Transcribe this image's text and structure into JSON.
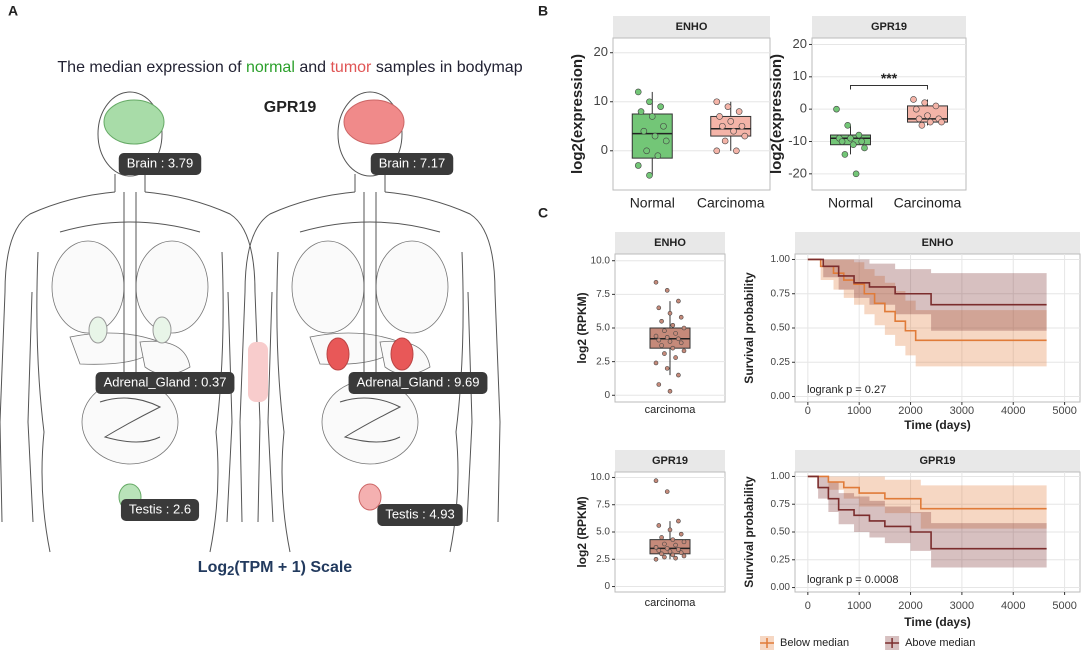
{
  "panels": [
    "A",
    "B",
    "C"
  ],
  "bodymap": {
    "title_parts": [
      "The median expression of",
      "normal",
      "and",
      "tumor",
      "samples in bodymap"
    ],
    "gene": "GPR19",
    "normal_labels": [
      "Brain : 3.79",
      "Adrenal_Gland : 0.37",
      "Testis : 2.6"
    ],
    "tumor_labels": [
      "Brain : 7.17",
      "Adrenal_Gland : 9.69",
      "Testis : 4.93"
    ],
    "scale": {
      "main": "Log",
      "sub": "2",
      "rest": "(TPM + 1) Scale"
    }
  },
  "chart_data": [
    {
      "type": "box",
      "title": "ENHO",
      "ylabel": "log2(expression)",
      "categories": [
        "Normal",
        "Carcinoma"
      ],
      "ylim": [
        -8,
        23
      ],
      "yticks": [
        0,
        10,
        20
      ],
      "grid": true,
      "boxes": [
        {
          "color": "#73c677",
          "q1": -1.5,
          "median": 3.5,
          "q3": 7.5,
          "low": -5,
          "high": 12,
          "points": [
            12,
            10,
            9,
            8,
            7,
            5,
            4,
            3,
            2,
            0,
            -1,
            -3,
            -5
          ]
        },
        {
          "color": "#f4b4a8",
          "q1": 3,
          "median": 4.5,
          "q3": 7,
          "low": 0,
          "high": 10,
          "points": [
            10,
            9,
            8,
            7,
            6,
            5,
            5,
            4,
            3,
            2,
            0,
            0
          ]
        }
      ]
    },
    {
      "type": "box",
      "title": "GPR19",
      "ylabel": "log2(expression)",
      "categories": [
        "Normal",
        "Carcinoma"
      ],
      "ylim": [
        -25,
        22
      ],
      "yticks": [
        -20,
        -10,
        0,
        10,
        20
      ],
      "grid": true,
      "annotation": "***",
      "boxes": [
        {
          "color": "#73c677",
          "q1": -11,
          "median": -9,
          "q3": -8,
          "low": -14,
          "high": -5,
          "points": [
            0,
            -5,
            -8,
            -9,
            -9,
            -10,
            -10,
            -11,
            -12,
            -14,
            -20
          ]
        },
        {
          "color": "#f4b4a8",
          "q1": -4,
          "median": -3,
          "q3": 1,
          "low": -5,
          "high": 3,
          "points": [
            3,
            2,
            1,
            0,
            -2,
            -3,
            -3,
            -4,
            -4,
            -5
          ]
        }
      ]
    },
    {
      "type": "box",
      "title": "ENHO",
      "ylabel": "log2 (RPKM)",
      "categories": [
        "carcinoma"
      ],
      "ylim": [
        -0.5,
        10.5
      ],
      "yticks": [
        0,
        2.5,
        {
          "value": 5,
          "label": "5.0"
        },
        7.5,
        {
          "value": 10,
          "label": "10.0"
        }
      ],
      "grid": true,
      "boxes": [
        {
          "color": "#c58a7a",
          "q1": 3.5,
          "median": 4.2,
          "q3": 5.0,
          "low": 1.5,
          "high": 7,
          "points": [
            8.4,
            7.8,
            7,
            6.5,
            6.1,
            5.8,
            5.5,
            5.2,
            5,
            4.8,
            4.6,
            4.4,
            4.3,
            4.2,
            4.1,
            4,
            3.9,
            3.7,
            3.5,
            3.3,
            3.1,
            2.8,
            2.4,
            2,
            1.5,
            0.8,
            0.3
          ]
        }
      ]
    },
    {
      "type": "survival",
      "title": "ENHO",
      "xlabel": "Time (days)",
      "ylabel": "Survival probability",
      "annotation": "logrank p = 0.27",
      "xlim": [
        -250,
        5300
      ],
      "xticks": [
        0,
        1000,
        2000,
        3000,
        4000,
        5000
      ],
      "ylim": [
        -0.04,
        1.04
      ],
      "yticks": [
        {
          "value": 0,
          "label": "0.00"
        },
        0.25,
        {
          "value": 0.5,
          "label": "0.50"
        },
        0.75,
        {
          "value": 1,
          "label": "1.00"
        }
      ],
      "grid": true,
      "series": [
        {
          "name": "Below median",
          "color": "#e07b39",
          "x": [
            0,
            250,
            500,
            700,
            900,
            1100,
            1300,
            1500,
            1700,
            1900,
            2100,
            4650
          ],
          "values": [
            1,
            0.95,
            0.9,
            0.85,
            0.82,
            0.75,
            0.68,
            0.62,
            0.55,
            0.48,
            0.41,
            0.41
          ],
          "lower": [
            1,
            0.85,
            0.78,
            0.72,
            0.67,
            0.6,
            0.52,
            0.45,
            0.37,
            0.3,
            0.22,
            0.22
          ],
          "upper": [
            1,
            1,
            1,
            1,
            0.98,
            0.93,
            0.88,
            0.83,
            0.77,
            0.7,
            0.63,
            0.63
          ]
        },
        {
          "name": "Above median",
          "color": "#7b2d2d",
          "x": [
            0,
            300,
            600,
            900,
            1200,
            1700,
            2400,
            4650
          ],
          "values": [
            1,
            0.95,
            0.88,
            0.83,
            0.8,
            0.75,
            0.67,
            0.67
          ],
          "lower": [
            1,
            0.87,
            0.78,
            0.72,
            0.67,
            0.6,
            0.48,
            0.48
          ],
          "upper": [
            1,
            1,
            1,
            1,
            0.97,
            0.93,
            0.9,
            0.9
          ]
        }
      ]
    },
    {
      "type": "box",
      "title": "GPR19",
      "ylabel": "log2 (RPKM)",
      "categories": [
        "carcinoma"
      ],
      "ylim": [
        -0.5,
        10.5
      ],
      "yticks": [
        0,
        2.5,
        {
          "value": 5,
          "label": "5.0"
        },
        7.5,
        {
          "value": 10,
          "label": "10.0"
        }
      ],
      "grid": true,
      "boxes": [
        {
          "color": "#c58a7a",
          "q1": 3.0,
          "median": 3.5,
          "q3": 4.3,
          "low": 2.5,
          "high": 6,
          "points": [
            9.7,
            8.7,
            6,
            5.6,
            5.2,
            4.8,
            4.5,
            4.3,
            4.1,
            3.9,
            3.8,
            3.6,
            3.5,
            3.4,
            3.3,
            3.2,
            3.1,
            3,
            2.9,
            2.8,
            2.7,
            2.6,
            2.5
          ]
        }
      ]
    },
    {
      "type": "survival",
      "title": "GPR19",
      "xlabel": "Time (days)",
      "ylabel": "Survival probability",
      "annotation": "logrank p = 0.0008",
      "xlim": [
        -250,
        5300
      ],
      "xticks": [
        0,
        1000,
        2000,
        3000,
        4000,
        5000
      ],
      "ylim": [
        -0.04,
        1.04
      ],
      "yticks": [
        {
          "value": 0,
          "label": "0.00"
        },
        0.25,
        {
          "value": 0.5,
          "label": "0.50"
        },
        0.75,
        {
          "value": 1,
          "label": "1.00"
        }
      ],
      "grid": true,
      "series": [
        {
          "name": "Below median",
          "color": "#e07b39",
          "x": [
            0,
            400,
            700,
            1000,
            1500,
            2200,
            4650
          ],
          "values": [
            1,
            0.95,
            0.9,
            0.85,
            0.8,
            0.71,
            0.71
          ],
          "lower": [
            1,
            0.88,
            0.8,
            0.73,
            0.67,
            0.53,
            0.53
          ],
          "upper": [
            1,
            1,
            1,
            1,
            0.97,
            0.92,
            0.92
          ]
        },
        {
          "name": "Above median",
          "color": "#7b2d2d",
          "x": [
            0,
            200,
            400,
            600,
            900,
            1200,
            1500,
            2000,
            2400,
            4650
          ],
          "values": [
            1,
            0.9,
            0.8,
            0.7,
            0.65,
            0.6,
            0.55,
            0.5,
            0.35,
            0.35
          ],
          "lower": [
            1,
            0.8,
            0.68,
            0.57,
            0.5,
            0.45,
            0.4,
            0.33,
            0.18,
            0.18
          ],
          "upper": [
            1,
            1,
            0.95,
            0.85,
            0.82,
            0.78,
            0.73,
            0.68,
            0.58,
            0.58
          ]
        }
      ]
    }
  ]
}
